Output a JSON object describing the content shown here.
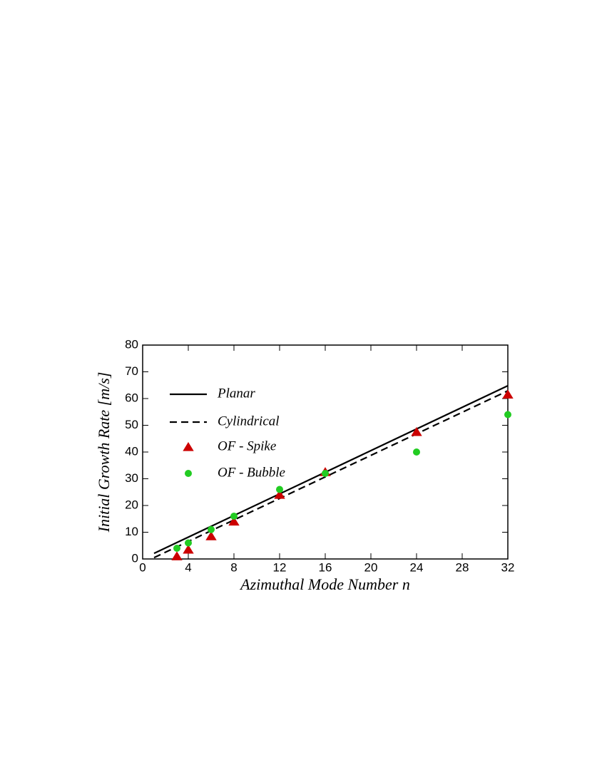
{
  "chart_data": {
    "type": "scatter",
    "xlabel": "Azimuthal Mode Number  n",
    "ylabel": "Initial Growth Rate [m/s]",
    "xlim": [
      0,
      32
    ],
    "xticks": [
      0,
      4,
      8,
      12,
      16,
      20,
      24,
      28,
      32
    ],
    "ylim": [
      0,
      80
    ],
    "yticks": [
      0,
      10,
      20,
      30,
      40,
      50,
      60,
      70,
      80
    ],
    "legend": "upper-left",
    "series": [
      {
        "name": "Planar",
        "color": "#000000",
        "line_style": "solid",
        "x": [
          1,
          32
        ],
        "values": [
          2.1,
          64.8
        ]
      },
      {
        "name": "Cylindrical",
        "color": "#000000",
        "line_style": "dashed",
        "x": [
          1,
          32
        ],
        "values": [
          0.5,
          62.9
        ]
      },
      {
        "name": "OF - Spike",
        "color": "#cc0000",
        "marker": "triangle",
        "x": [
          3,
          4,
          6,
          8,
          12,
          16,
          24,
          32
        ],
        "values": [
          1,
          3.5,
          8.5,
          14,
          24,
          32.5,
          47.5,
          61.5
        ]
      },
      {
        "name": "OF - Bubble",
        "color": "#22cc22",
        "marker": "circle",
        "x": [
          3,
          4,
          6,
          8,
          12,
          16,
          24,
          32
        ],
        "values": [
          4,
          6,
          11,
          16,
          26,
          32,
          40,
          54
        ]
      }
    ]
  }
}
